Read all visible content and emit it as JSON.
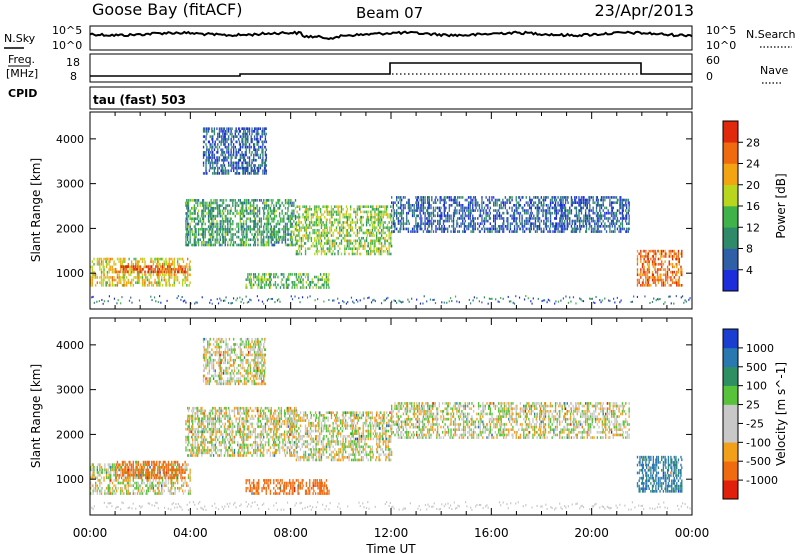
{
  "header": {
    "station": "Goose Bay (fitACF)",
    "beam": "Beam 07",
    "date": "23/Apr/2013"
  },
  "noise_panel": {
    "left_label": "N.Sky",
    "right_label": "N.Search",
    "left_ticks": [
      "10^5",
      "10^0"
    ],
    "right_ticks": [
      "10^5",
      "10^0"
    ],
    "left_line_style": "solid",
    "right_line_style": "dotted"
  },
  "freq_panel": {
    "left_label": "Freq.",
    "left_unit": "[MHz]",
    "right_label": "Nave",
    "left_ticks": [
      "18",
      "8"
    ],
    "right_ticks": [
      "60",
      "0"
    ],
    "left_line_style": "solid",
    "right_line_style": "dotted"
  },
  "cpid_panel": {
    "label": "CPID",
    "mode_text": "tau (fast) 503"
  },
  "x_axis": {
    "title": "Time UT",
    "ticks": [
      "00:00",
      "04:00",
      "08:00",
      "12:00",
      "16:00",
      "20:00",
      "00:00"
    ]
  },
  "chart_data": [
    {
      "type": "heatmap",
      "parameter": "Power",
      "ylabel": "Slant Range [km]",
      "xlabel": "Time UT",
      "x_range_hours": [
        0,
        24
      ],
      "ylim": [
        200,
        4600
      ],
      "y_ticks": [
        1000,
        2000,
        3000,
        4000
      ],
      "colorbar": {
        "title": "Power [dB]",
        "ticks": [
          "4",
          "8",
          "12",
          "16",
          "20",
          "24",
          "28"
        ],
        "colors": [
          "#1e2ddb",
          "#2f5fa6",
          "#2f8a6a",
          "#3fb34a",
          "#b9d61e",
          "#f3a413",
          "#f06a10",
          "#e02a0b"
        ]
      },
      "echo_regions": [
        {
          "t": [
            0.0,
            4.0
          ],
          "range_km": [
            700,
            1300
          ],
          "level": 20
        },
        {
          "t": [
            1.0,
            3.8
          ],
          "range_km": [
            1000,
            1150
          ],
          "level": 28
        },
        {
          "t": [
            3.8,
            8.2
          ],
          "range_km": [
            1600,
            2600
          ],
          "level": 12
        },
        {
          "t": [
            4.5,
            7.0
          ],
          "range_km": [
            3200,
            4200
          ],
          "level": 6
        },
        {
          "t": [
            6.2,
            9.5
          ],
          "range_km": [
            650,
            1000
          ],
          "level": 14
        },
        {
          "t": [
            8.2,
            12.0
          ],
          "range_km": [
            1400,
            2500
          ],
          "level": 16
        },
        {
          "t": [
            12.0,
            21.5
          ],
          "range_km": [
            1900,
            2700
          ],
          "level": 6
        },
        {
          "t": [
            21.8,
            23.6
          ],
          "range_km": [
            700,
            1500
          ],
          "level": 26
        }
      ]
    },
    {
      "type": "heatmap",
      "parameter": "Velocity",
      "ylabel": "Slant Range [km]",
      "xlabel": "Time UT",
      "x_range_hours": [
        0,
        24
      ],
      "ylim": [
        200,
        4600
      ],
      "y_ticks": [
        1000,
        2000,
        3000,
        4000
      ],
      "colorbar": {
        "title": "Velocity [m s^-1]",
        "ticks": [
          "1000",
          "500",
          "100",
          "25",
          "-25",
          "-100",
          "-500",
          "-1000"
        ],
        "colors": [
          "#1a3fd0",
          "#2a78b0",
          "#2e8f62",
          "#58c23a",
          "#c8c8c8",
          "#c8c8c8",
          "#f2a01a",
          "#f06a10",
          "#e0200a"
        ]
      },
      "echo_regions": [
        {
          "t": [
            0.0,
            4.0
          ],
          "range_km": [
            650,
            1300
          ],
          "level": 0
        },
        {
          "t": [
            1.0,
            3.8
          ],
          "range_km": [
            1000,
            1400
          ],
          "level": -300
        },
        {
          "t": [
            3.8,
            8.2
          ],
          "range_km": [
            1500,
            2600
          ],
          "level": 0
        },
        {
          "t": [
            4.5,
            7.0
          ],
          "range_km": [
            3100,
            4100
          ],
          "level": 0
        },
        {
          "t": [
            6.2,
            9.5
          ],
          "range_km": [
            650,
            950
          ],
          "level": -200
        },
        {
          "t": [
            8.2,
            12.0
          ],
          "range_km": [
            1400,
            2500
          ],
          "level": 0
        },
        {
          "t": [
            12.0,
            21.5
          ],
          "range_km": [
            1900,
            2700
          ],
          "level": 0
        },
        {
          "t": [
            21.8,
            23.6
          ],
          "range_km": [
            700,
            1500
          ],
          "level": 300
        }
      ]
    }
  ]
}
